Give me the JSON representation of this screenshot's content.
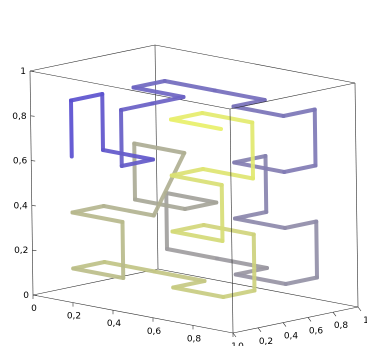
{
  "chart_data": {
    "type": "line3d",
    "title": "",
    "xlabel": "",
    "ylabel": "",
    "zlabel": "",
    "xlim": [
      0,
      1
    ],
    "ylim": [
      0,
      1
    ],
    "zlim": [
      0,
      1
    ],
    "grid": false,
    "legend": "none",
    "box": true,
    "x_ticks": [
      "0",
      "0,2",
      "0,4",
      "0,6",
      "0,8",
      "1"
    ],
    "y_ticks": [
      "0",
      "0,2",
      "0,4",
      "0,6",
      "0,8",
      "1"
    ],
    "z_ticks": [
      "0",
      "0,2",
      "0,4",
      "0,6",
      "0,8",
      "1"
    ],
    "series": [
      {
        "color_start": "#5a4fd0",
        "color_end": "#e8f06a",
        "points": [
          [
            0.125,
            0.125,
            0.625
          ],
          [
            0.125,
            0.125,
            0.875
          ],
          [
            0.125,
            0.375,
            0.875
          ],
          [
            0.125,
            0.375,
            0.625
          ],
          [
            0.375,
            0.375,
            0.625
          ],
          [
            0.375,
            0.125,
            0.625
          ],
          [
            0.375,
            0.125,
            0.875
          ],
          [
            0.375,
            0.375,
            0.875
          ],
          [
            0.375,
            0.625,
            0.875
          ],
          [
            0.125,
            0.625,
            0.875
          ],
          [
            0.125,
            0.875,
            0.875
          ],
          [
            0.375,
            0.875,
            0.875
          ],
          [
            0.625,
            0.875,
            0.875
          ],
          [
            0.625,
            0.625,
            0.875
          ],
          [
            0.875,
            0.625,
            0.875
          ],
          [
            0.875,
            0.875,
            0.875
          ],
          [
            0.875,
            0.875,
            0.625
          ],
          [
            0.875,
            0.625,
            0.625
          ],
          [
            0.625,
            0.625,
            0.625
          ],
          [
            0.625,
            0.875,
            0.625
          ],
          [
            0.625,
            0.875,
            0.375
          ],
          [
            0.625,
            0.625,
            0.375
          ],
          [
            0.875,
            0.625,
            0.375
          ],
          [
            0.875,
            0.875,
            0.375
          ],
          [
            0.875,
            0.875,
            0.125
          ],
          [
            0.875,
            0.625,
            0.125
          ],
          [
            0.625,
            0.625,
            0.125
          ],
          [
            0.625,
            0.875,
            0.125
          ],
          [
            0.375,
            0.875,
            0.125
          ],
          [
            0.125,
            0.875,
            0.125
          ],
          [
            0.125,
            0.875,
            0.375
          ],
          [
            0.375,
            0.875,
            0.375
          ],
          [
            0.375,
            0.625,
            0.375
          ],
          [
            0.125,
            0.625,
            0.375
          ],
          [
            0.125,
            0.625,
            0.625
          ],
          [
            0.375,
            0.625,
            0.625
          ],
          [
            0.375,
            0.375,
            0.375
          ],
          [
            0.125,
            0.375,
            0.375
          ],
          [
            0.125,
            0.125,
            0.375
          ],
          [
            0.375,
            0.125,
            0.375
          ],
          [
            0.375,
            0.125,
            0.125
          ],
          [
            0.125,
            0.125,
            0.125
          ],
          [
            0.125,
            0.375,
            0.125
          ],
          [
            0.375,
            0.375,
            0.125
          ],
          [
            0.625,
            0.375,
            0.125
          ],
          [
            0.625,
            0.125,
            0.125
          ],
          [
            0.875,
            0.125,
            0.125
          ],
          [
            0.875,
            0.375,
            0.125
          ],
          [
            0.875,
            0.375,
            0.375
          ],
          [
            0.625,
            0.375,
            0.375
          ],
          [
            0.625,
            0.125,
            0.375
          ],
          [
            0.875,
            0.125,
            0.375
          ],
          [
            0.875,
            0.125,
            0.625
          ],
          [
            0.625,
            0.125,
            0.625
          ],
          [
            0.625,
            0.375,
            0.625
          ],
          [
            0.875,
            0.375,
            0.625
          ],
          [
            0.875,
            0.375,
            0.875
          ],
          [
            0.625,
            0.375,
            0.875
          ],
          [
            0.625,
            0.125,
            0.875
          ],
          [
            0.875,
            0.125,
            0.875
          ]
        ]
      }
    ]
  }
}
